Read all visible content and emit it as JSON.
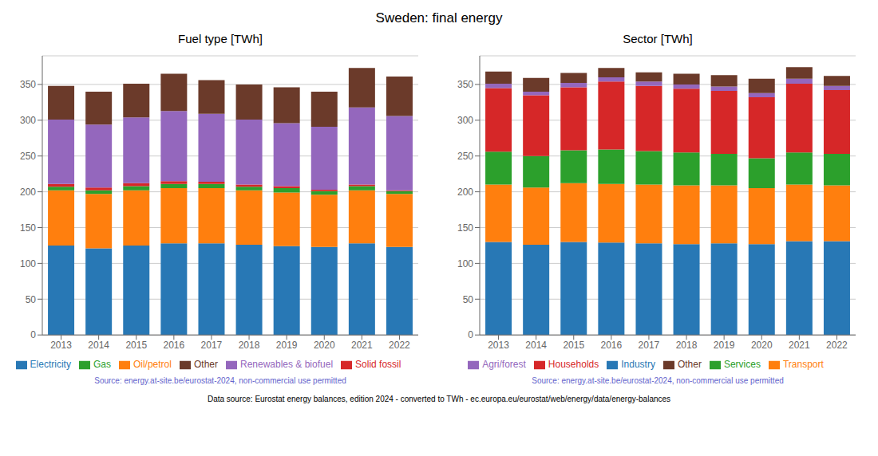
{
  "title": "Sweden: final energy",
  "annotations": [
    {
      "text": "Data source: Eurostat energy balances, edition 2024 - converted to TWh - ec.europa.eu/eurostat/web/energy/data/energy-balances",
      "color": "#000000"
    }
  ],
  "chart_data": [
    {
      "type": "bar",
      "stacked": true,
      "title": "Fuel type [TWh]",
      "categories": [
        "2013",
        "2014",
        "2015",
        "2016",
        "2017",
        "2018",
        "2019",
        "2020",
        "2021",
        "2022"
      ],
      "series": [
        {
          "name": "Electricity",
          "color": "#2878b5",
          "values": [
            125,
            121,
            125,
            128,
            128,
            126,
            124,
            123,
            128,
            123
          ]
        },
        {
          "name": "Oil/petrol",
          "color": "#ff7f0e",
          "values": [
            77,
            76,
            77,
            77,
            77,
            76,
            75,
            73,
            74,
            74
          ]
        },
        {
          "name": "Gas",
          "color": "#2ca02c",
          "values": [
            5,
            5,
            6,
            6,
            6,
            5,
            6,
            5,
            6,
            4
          ]
        },
        {
          "name": "Solid fossil",
          "color": "#d62728",
          "values": [
            4,
            4,
            4,
            4,
            3,
            3,
            3,
            2,
            2,
            1
          ]
        },
        {
          "name": "Renewables & biofuel",
          "color": "#9467bd",
          "values": [
            90,
            88,
            92,
            98,
            95,
            91,
            88,
            88,
            108,
            104
          ]
        },
        {
          "name": "Other",
          "color": "#6b3a2a",
          "values": [
            47,
            46,
            47,
            52,
            47,
            49,
            50,
            49,
            55,
            55
          ]
        }
      ],
      "ylim": [
        0,
        390
      ],
      "yticks": [
        0,
        50,
        100,
        150,
        200,
        250,
        300,
        350
      ],
      "grid": true,
      "legend": "bottom",
      "annotations": [
        {
          "text": "Source: energy.at-site.be/eurostat-2024, non-commercial use permitted",
          "color": "#6464cc"
        }
      ]
    },
    {
      "type": "bar",
      "stacked": true,
      "title": "Sector [TWh]",
      "categories": [
        "2013",
        "2014",
        "2015",
        "2016",
        "2017",
        "2018",
        "2019",
        "2020",
        "2021",
        "2022"
      ],
      "series": [
        {
          "name": "Industry",
          "color": "#2878b5",
          "values": [
            130,
            126,
            130,
            129,
            128,
            127,
            128,
            127,
            131,
            131
          ]
        },
        {
          "name": "Transport",
          "color": "#ff7f0e",
          "values": [
            80,
            80,
            82,
            82,
            82,
            82,
            81,
            78,
            79,
            78
          ]
        },
        {
          "name": "Services",
          "color": "#2ca02c",
          "values": [
            46,
            44,
            46,
            48,
            47,
            46,
            44,
            42,
            45,
            44
          ]
        },
        {
          "name": "Households",
          "color": "#d62728",
          "values": [
            89,
            85,
            88,
            95,
            91,
            89,
            88,
            85,
            96,
            89
          ]
        },
        {
          "name": "Agri/forest",
          "color": "#9467bd",
          "values": [
            6,
            5,
            6,
            6,
            6,
            6,
            6,
            6,
            7,
            6
          ]
        },
        {
          "name": "Other",
          "color": "#6b3a2a",
          "values": [
            17,
            19,
            14,
            13,
            13,
            15,
            16,
            20,
            16,
            14
          ]
        }
      ],
      "ylim": [
        0,
        390
      ],
      "yticks": [
        0,
        50,
        100,
        150,
        200,
        250,
        300,
        350
      ],
      "grid": true,
      "legend": "bottom",
      "annotations": [
        {
          "text": "Source: energy.at-site.be/eurostat-2024, non-commercial use permitted",
          "color": "#6464cc"
        }
      ]
    }
  ]
}
